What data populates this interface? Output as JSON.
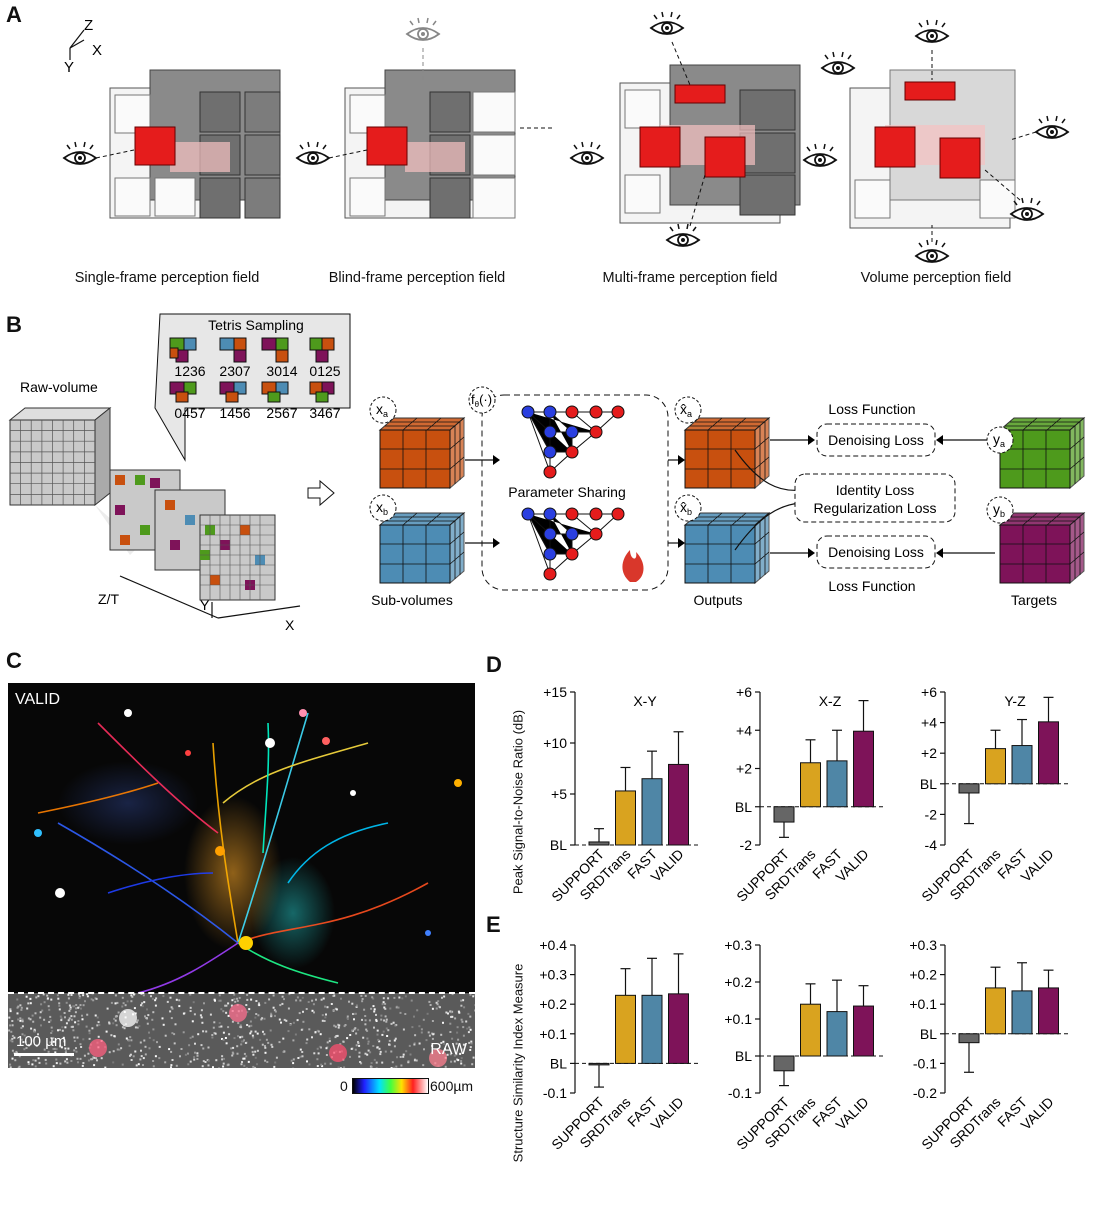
{
  "panels": {
    "a": "A",
    "b": "B",
    "c": "C",
    "d": "D",
    "e": "E"
  },
  "panel_a": {
    "axes": {
      "z": "Z",
      "x": "X",
      "y": "Y"
    },
    "captions": [
      "Single-frame perception field",
      "Blind-frame perception field",
      "Multi-frame perception field",
      "Volume perception field"
    ]
  },
  "panel_b": {
    "tetris_title": "Tetris Sampling",
    "tetris_codes": [
      "1236",
      "2307",
      "3014",
      "0125",
      "0457",
      "1456",
      "2567",
      "3467"
    ],
    "raw_volume": "Raw-volume",
    "axis_zt": "Z/T",
    "axis_y": "Y",
    "axis_x": "X",
    "xa": "x",
    "xa_sub": "a",
    "xb": "x",
    "xb_sub": "b",
    "f_label": "f",
    "f_sub": "θ",
    "f_arg": "(·)",
    "xhat_a": "x̂",
    "xhat_a_sub": "a",
    "xhat_b": "x̂",
    "xhat_b_sub": "b",
    "ya": "y",
    "ya_sub": "a",
    "yb": "y",
    "yb_sub": "b",
    "parameter_sharing": "Parameter Sharing",
    "loss_function_top": "Loss Function",
    "denoising_loss_top": "Denoising Loss",
    "identity_loss": "Identity Loss",
    "regularization_loss": "Regularization Loss",
    "denoising_loss_bottom": "Denoising Loss",
    "loss_function_bottom": "Loss Function",
    "sub_volumes": "Sub-volumes",
    "outputs": "Outputs",
    "targets": "Targets",
    "colors": {
      "orange": "#c8500f",
      "blue": "#4d8cb4",
      "green": "#4e9a1c",
      "purple": "#7e1359",
      "red": "#e51c1c",
      "grey": "#b8b8b8"
    }
  },
  "panel_c": {
    "valid_tag": "VALID",
    "raw_tag": "RAW",
    "scale_bar": "100 µm",
    "colorbar_min": "0",
    "colorbar_max": "600µm"
  },
  "chart_data": [
    {
      "panel": "D",
      "type": "bar",
      "title": "X-Y",
      "ylabel": "Peak Signal-to-Noise Ratio (dB)",
      "categories": [
        "SUPPORT",
        "SRDTrans",
        "FAST",
        "VALID"
      ],
      "values": [
        0.3,
        5.3,
        6.5,
        7.9
      ],
      "errors": [
        1.3,
        2.3,
        2.7,
        3.2
      ],
      "ylim": [
        0,
        15
      ],
      "ticks": [
        0,
        5,
        10,
        15
      ],
      "tick_labels": [
        "BL",
        "+5",
        "+10",
        "+15"
      ],
      "colors": [
        "#666666",
        "#d9a31f",
        "#4f86a6",
        "#7e1359"
      ]
    },
    {
      "panel": "D",
      "type": "bar",
      "title": "X-Z",
      "categories": [
        "SUPPORT",
        "SRDTrans",
        "FAST",
        "VALID"
      ],
      "values": [
        -0.8,
        2.3,
        2.4,
        3.95
      ],
      "errors": [
        0.8,
        1.2,
        1.6,
        1.6
      ],
      "ylim": [
        -2,
        6
      ],
      "ticks": [
        -2,
        0,
        2,
        4,
        6
      ],
      "tick_labels": [
        "-2",
        "BL",
        "+2",
        "+4",
        "+6"
      ],
      "colors": [
        "#666666",
        "#d9a31f",
        "#4f86a6",
        "#7e1359"
      ]
    },
    {
      "panel": "D",
      "type": "bar",
      "title": "Y-Z",
      "categories": [
        "SUPPORT",
        "SRDTrans",
        "FAST",
        "VALID"
      ],
      "values": [
        -0.6,
        2.3,
        2.5,
        4.05
      ],
      "errors": [
        2.0,
        1.2,
        1.7,
        1.6
      ],
      "ylim": [
        -4,
        6
      ],
      "ticks": [
        -4,
        -2,
        0,
        2,
        4,
        6
      ],
      "tick_labels": [
        "-4",
        "-2",
        "BL",
        "+2",
        "+4",
        "+6"
      ],
      "colors": [
        "#666666",
        "#d9a31f",
        "#4f86a6",
        "#7e1359"
      ]
    },
    {
      "panel": "E",
      "type": "bar",
      "title": "",
      "ylabel": "Structure Similarity Index Measure",
      "categories": [
        "SUPPORT",
        "SRDTrans",
        "FAST",
        "VALID"
      ],
      "values": [
        -0.005,
        0.23,
        0.23,
        0.235
      ],
      "errors": [
        0.075,
        0.09,
        0.125,
        0.135
      ],
      "ylim": [
        -0.1,
        0.4
      ],
      "ticks": [
        -0.1,
        0,
        0.1,
        0.2,
        0.3,
        0.4
      ],
      "tick_labels": [
        "-0.1",
        "BL",
        "+0.1",
        "+0.2",
        "+0.3",
        "+0.4"
      ],
      "colors": [
        "#666666",
        "#d9a31f",
        "#4f86a6",
        "#7e1359"
      ]
    },
    {
      "panel": "E",
      "type": "bar",
      "title": "",
      "categories": [
        "SUPPORT",
        "SRDTrans",
        "FAST",
        "VALID"
      ],
      "values": [
        -0.04,
        0.14,
        0.12,
        0.135
      ],
      "errors": [
        0.04,
        0.055,
        0.085,
        0.055
      ],
      "ylim": [
        -0.1,
        0.3
      ],
      "ticks": [
        -0.1,
        0,
        0.1,
        0.2,
        0.3
      ],
      "tick_labels": [
        "-0.1",
        "BL",
        "+0.1",
        "+0.2",
        "+0.3"
      ],
      "colors": [
        "#666666",
        "#d9a31f",
        "#4f86a6",
        "#7e1359"
      ]
    },
    {
      "panel": "E",
      "type": "bar",
      "title": "",
      "categories": [
        "SUPPORT",
        "SRDTrans",
        "FAST",
        "VALID"
      ],
      "values": [
        -0.03,
        0.155,
        0.145,
        0.155
      ],
      "errors": [
        0.1,
        0.07,
        0.095,
        0.06
      ],
      "ylim": [
        -0.2,
        0.3
      ],
      "ticks": [
        -0.2,
        -0.1,
        0,
        0.1,
        0.2,
        0.3
      ],
      "tick_labels": [
        "-0.2",
        "-0.1",
        "BL",
        "+0.1",
        "+0.2",
        "+0.3"
      ],
      "colors": [
        "#666666",
        "#d9a31f",
        "#4f86a6",
        "#7e1359"
      ]
    }
  ]
}
